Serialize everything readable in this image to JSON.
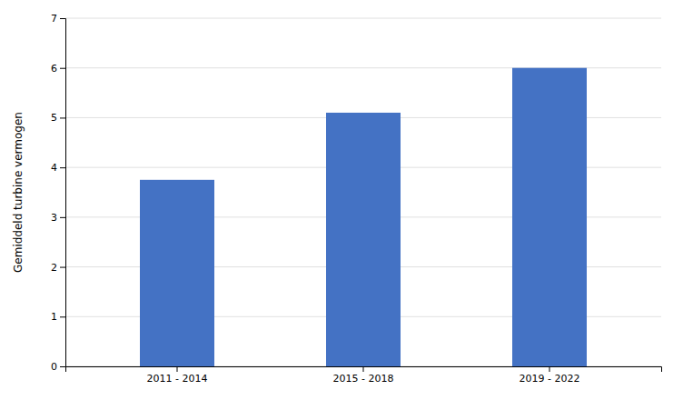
{
  "chart_data": {
    "type": "bar",
    "categories": [
      "2011 - 2014",
      "2015 - 2018",
      "2019 - 2022"
    ],
    "values": [
      3.75,
      5.1,
      6.0
    ],
    "color": "#4472C4",
    "ylabel": "Gemiddeld turbine vermogen",
    "ylim": [
      0,
      7
    ],
    "yticks": [
      0,
      1,
      2,
      3,
      4,
      5,
      6,
      7
    ],
    "grid": true
  }
}
